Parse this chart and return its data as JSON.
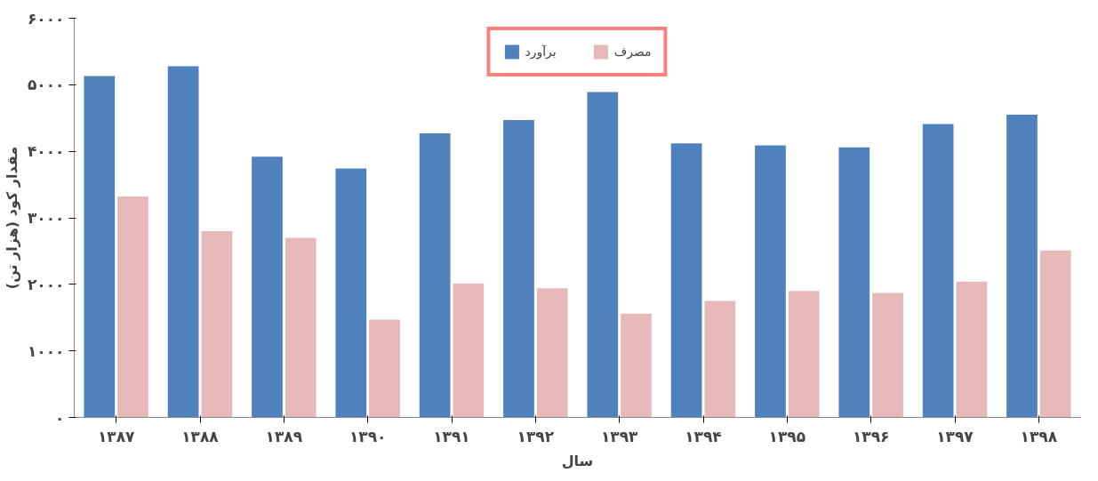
{
  "chart_data": {
    "type": "bar",
    "xlabel": "سال",
    "ylabel": "مقدار کود (هزار تن)",
    "categories": [
      "۱۳۸۷",
      "۱۳۸۸",
      "۱۳۸۹",
      "۱۳۹۰",
      "۱۳۹۱",
      "۱۳۹۲",
      "۱۳۹۳",
      "۱۳۹۴",
      "۱۳۹۵",
      "۱۳۹۶",
      "۱۳۹۷",
      "۱۳۹۸"
    ],
    "series": [
      {
        "name": "برآورد",
        "color": "#4f81bd",
        "values": [
          5130,
          5280,
          3920,
          3740,
          4270,
          4470,
          4890,
          4120,
          4090,
          4060,
          4410,
          4550
        ]
      },
      {
        "name": "مصرف",
        "color": "#e6b9b8",
        "values": [
          3320,
          2800,
          2700,
          1470,
          2010,
          1940,
          1560,
          1750,
          1900,
          1870,
          2040,
          2510
        ]
      }
    ],
    "ylim": [
      0,
      6000
    ],
    "yticks": [
      {
        "value": 0,
        "label": "۰"
      },
      {
        "value": 1000,
        "label": "۱۰۰۰"
      },
      {
        "value": 2000,
        "label": "۲۰۰۰"
      },
      {
        "value": 3000,
        "label": "۳۰۰۰"
      },
      {
        "value": 4000,
        "label": "۴۰۰۰"
      },
      {
        "value": 5000,
        "label": "۵۰۰۰"
      },
      {
        "value": 6000,
        "label": "۶۰۰۰"
      }
    ],
    "grid": false,
    "legend": "top"
  }
}
